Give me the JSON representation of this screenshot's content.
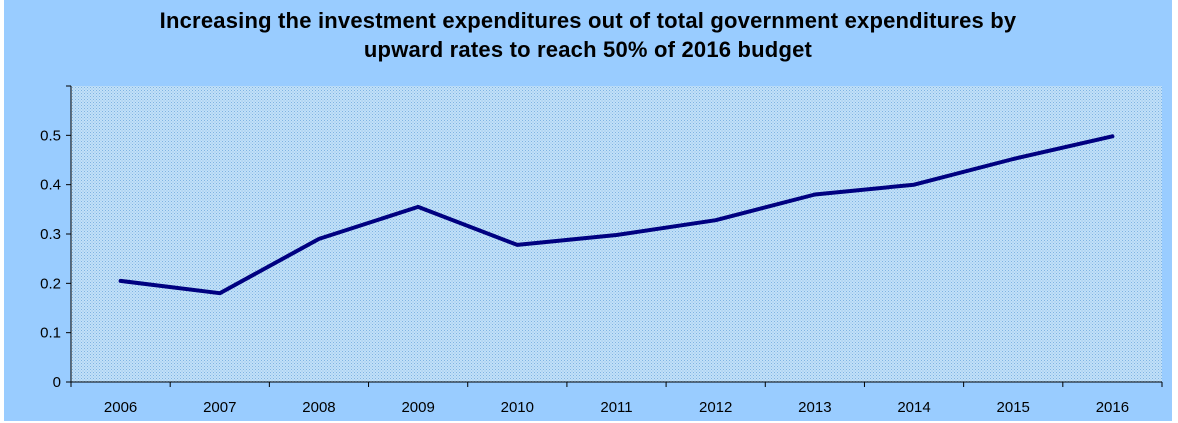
{
  "title_line1": "Increasing the investment expenditures out of total government expenditures by",
  "title_line2": "upward rates to reach 50% of 2016 budget",
  "chart_data": {
    "type": "line",
    "title": "Increasing the investment expenditures out of total government expenditures by upward rates to reach 50% of 2016 budget",
    "categories": [
      "2006",
      "2007",
      "2008",
      "2009",
      "2010",
      "2011",
      "2012",
      "2013",
      "2014",
      "2015",
      "2016"
    ],
    "series": [
      {
        "values": [
          0.205,
          0.18,
          0.29,
          0.355,
          0.278,
          0.298,
          0.328,
          0.38,
          0.4,
          0.452,
          0.498
        ]
      }
    ],
    "yticks": [
      "0",
      "0.1",
      "0.2",
      "0.3",
      "0.4",
      "0.5"
    ],
    "ylim": [
      0,
      0.6
    ],
    "xlabel": "",
    "ylabel": "",
    "grid": false,
    "legend": "none",
    "colors": {
      "line": "#000080",
      "plot_background": "#b4d8f4",
      "frame_background": "#99ccff"
    }
  }
}
